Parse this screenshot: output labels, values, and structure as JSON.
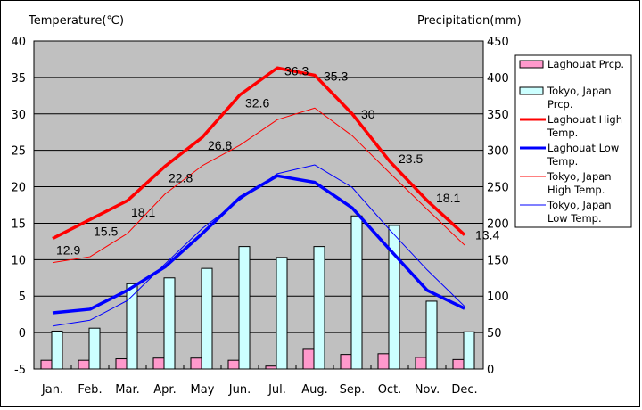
{
  "chart_data": {
    "type": "bar",
    "title_left": "Temperature(℃)",
    "title_right": "Precipitation(mm)",
    "categories": [
      "Jan.",
      "Feb.",
      "Mar.",
      "Apr.",
      "May",
      "Jun.",
      "Jul.",
      "Aug.",
      "Sep.",
      "Oct.",
      "Nov.",
      "Dec."
    ],
    "y_left": {
      "label": "Temperature(℃)",
      "range": [
        -5,
        40
      ],
      "ticks": [
        "-5",
        "0",
        "5",
        "10",
        "15",
        "20",
        "25",
        "30",
        "35",
        "40"
      ]
    },
    "y_right": {
      "label": "Precipitation(mm)",
      "range": [
        0,
        450
      ],
      "ticks": [
        "0",
        "50",
        "100",
        "150",
        "200",
        "250",
        "300",
        "350",
        "400",
        "450"
      ]
    },
    "grid": true,
    "legend_position": "right",
    "series": [
      {
        "name": "Laghouat Prcp.",
        "kind": "bar",
        "axis": "right",
        "color": "#ff99cc",
        "values": [
          12,
          12,
          14,
          15,
          15,
          12,
          4,
          27,
          20,
          21,
          16,
          13
        ]
      },
      {
        "name": "Tokyo, Japan Prcp.",
        "kind": "bar",
        "axis": "right",
        "color": "#ccffff",
        "values": [
          52,
          56,
          117,
          125,
          138,
          168,
          153,
          168,
          210,
          197,
          93,
          51
        ]
      },
      {
        "name": "Laghouat High Temp.",
        "kind": "line",
        "axis": "left",
        "color": "#ff0000",
        "width": "thick",
        "values": [
          12.9,
          15.5,
          18.1,
          22.8,
          26.8,
          32.6,
          36.3,
          35.3,
          30,
          23.5,
          18.1,
          13.4
        ],
        "labels": [
          "12.9",
          "15.5",
          "18.1",
          "22.8",
          "26.8",
          "32.6",
          "36.3",
          "35.3",
          "30",
          "23.5",
          "18.1",
          "13.4"
        ]
      },
      {
        "name": "Laghouat Low Temp.",
        "kind": "line",
        "axis": "left",
        "color": "#0000ff",
        "width": "thick",
        "values": [
          2.7,
          3.2,
          5.8,
          9.0,
          13.6,
          18.5,
          21.5,
          20.6,
          17.1,
          11.4,
          5.8,
          3.3
        ]
      },
      {
        "name": "Tokyo, Japan High Temp.",
        "kind": "line",
        "axis": "left",
        "color": "#ff0000",
        "width": "thin",
        "values": [
          9.6,
          10.4,
          13.6,
          19.0,
          22.9,
          25.7,
          29.2,
          30.8,
          27.0,
          21.9,
          16.9,
          12.0
        ]
      },
      {
        "name": "Tokyo, Japan Low Temp.",
        "kind": "line",
        "axis": "left",
        "color": "#0000ff",
        "width": "thin",
        "values": [
          0.9,
          1.7,
          4.4,
          9.4,
          14.3,
          18.2,
          21.8,
          23.0,
          19.9,
          14.1,
          8.6,
          3.6
        ]
      }
    ],
    "legend": [
      {
        "lines": [
          "Laghouat Prcp."
        ],
        "swatch": "bar",
        "color": "#ff99cc"
      },
      {
        "lines": [
          "Tokyo, Japan",
          "Prcp."
        ],
        "swatch": "bar",
        "color": "#ccffff"
      },
      {
        "lines": [
          "Laghouat High",
          "Temp."
        ],
        "swatch": "thick-line",
        "color": "#ff0000"
      },
      {
        "lines": [
          "Laghouat Low",
          "Temp."
        ],
        "swatch": "thick-line",
        "color": "#0000ff"
      },
      {
        "lines": [
          "Tokyo, Japan",
          "High Temp."
        ],
        "swatch": "thin-line",
        "color": "#ff0000"
      },
      {
        "lines": [
          "Tokyo, Japan",
          "Low Temp."
        ],
        "swatch": "thin-line",
        "color": "#0000ff"
      }
    ],
    "plot_background": "#c0c0c0"
  }
}
